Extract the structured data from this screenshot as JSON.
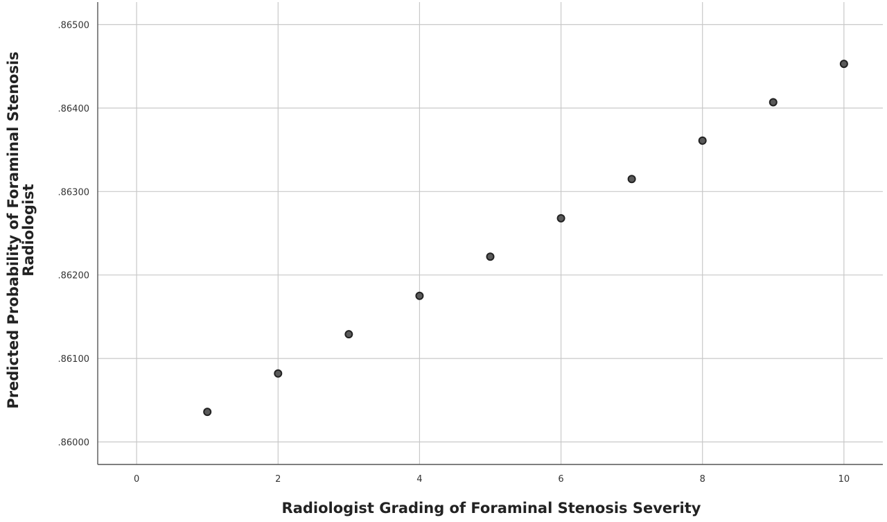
{
  "chart_data": {
    "type": "scatter",
    "title": "",
    "xlabel": "Radiologist Grading of Foraminal Stenosis Severity",
    "ylabel_lines": [
      "Predicted Probability of Foraminal Stenosis",
      "Radiologist"
    ],
    "xlim": [
      -0.55,
      10.55
    ],
    "ylim": [
      0.85973,
      0.86527
    ],
    "x_ticks": [
      0,
      2,
      4,
      6,
      8,
      10
    ],
    "x_tick_labels": [
      "0",
      "2",
      "4",
      "6",
      "8",
      "10"
    ],
    "y_ticks": [
      0.86,
      0.861,
      0.862,
      0.863,
      0.864,
      0.865
    ],
    "y_tick_labels": [
      ".86000",
      ".86100",
      ".86200",
      ".86300",
      ".86400",
      ".86500"
    ],
    "grid": true,
    "points": [
      {
        "x": 1,
        "y": 0.86036
      },
      {
        "x": 2,
        "y": 0.86082
      },
      {
        "x": 3,
        "y": 0.86129
      },
      {
        "x": 4,
        "y": 0.86175
      },
      {
        "x": 5,
        "y": 0.86222
      },
      {
        "x": 6,
        "y": 0.86268
      },
      {
        "x": 7,
        "y": 0.86315
      },
      {
        "x": 8,
        "y": 0.86361
      },
      {
        "x": 9,
        "y": 0.86407
      },
      {
        "x": 10,
        "y": 0.86453
      }
    ],
    "colors": {
      "point_fill": "#5a5a5a",
      "point_stroke": "#222222",
      "grid": "#c8c8c8",
      "axis": "#555555"
    }
  }
}
